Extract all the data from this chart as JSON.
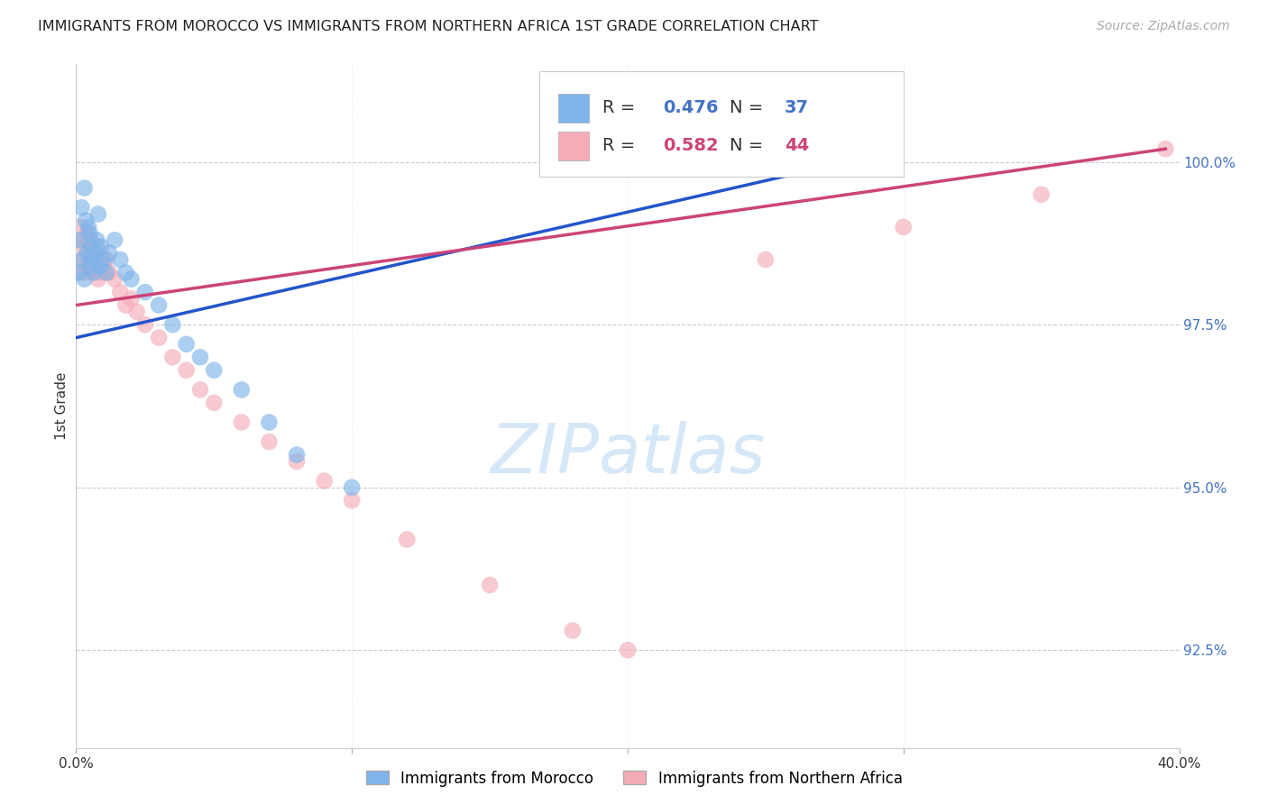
{
  "title": "IMMIGRANTS FROM MOROCCO VS IMMIGRANTS FROM NORTHERN AFRICA 1ST GRADE CORRELATION CHART",
  "source": "Source: ZipAtlas.com",
  "ylabel": "1st Grade",
  "xlim": [
    0.0,
    40.0
  ],
  "ylim": [
    91.0,
    101.5
  ],
  "xticks": [
    0.0,
    10.0,
    20.0,
    30.0,
    40.0
  ],
  "xticklabels": [
    "0.0%",
    "",
    "",
    "",
    "40.0%"
  ],
  "yticks": [
    92.5,
    95.0,
    97.5,
    100.0
  ],
  "yticklabels": [
    "92.5%",
    "95.0%",
    "97.5%",
    "100.0%"
  ],
  "legend_label1": "Immigrants from Morocco",
  "legend_label2": "Immigrants from Northern Africa",
  "R1": 0.476,
  "N1": 37,
  "R2": 0.582,
  "N2": 44,
  "color_blue": "#7EB4EA",
  "color_pink": "#F4ACB7",
  "color_blue_line": "#2255CC",
  "color_pink_line": "#CC4477",
  "color_blue_text": "#4472C4",
  "color_pink_text": "#CC4477",
  "background_color": "#FFFFFF",
  "watermark_color": "#D6E8F7",
  "morocco_x": [
    0.1,
    0.15,
    0.2,
    0.25,
    0.3,
    0.3,
    0.35,
    0.4,
    0.45,
    0.5,
    0.5,
    0.55,
    0.6,
    0.65,
    0.7,
    0.75,
    0.8,
    0.85,
    0.9,
    1.0,
    1.1,
    1.2,
    1.4,
    1.6,
    1.8,
    2.0,
    2.5,
    3.0,
    3.5,
    4.0,
    4.5,
    5.0,
    6.0,
    7.0,
    8.0,
    10.0,
    28.5
  ],
  "morocco_y": [
    98.3,
    98.8,
    99.3,
    98.5,
    99.6,
    98.2,
    99.1,
    98.6,
    99.0,
    98.9,
    98.4,
    98.7,
    98.5,
    98.3,
    98.6,
    98.8,
    99.2,
    98.4,
    98.7,
    98.5,
    98.3,
    98.6,
    98.8,
    98.5,
    98.3,
    98.2,
    98.0,
    97.8,
    97.5,
    97.2,
    97.0,
    96.8,
    96.5,
    96.0,
    95.5,
    95.0,
    100.0
  ],
  "n_africa_x": [
    0.1,
    0.15,
    0.2,
    0.25,
    0.3,
    0.35,
    0.4,
    0.45,
    0.5,
    0.55,
    0.6,
    0.65,
    0.7,
    0.75,
    0.8,
    0.85,
    0.9,
    1.0,
    1.1,
    1.2,
    1.4,
    1.6,
    1.8,
    2.0,
    2.2,
    2.5,
    3.0,
    3.5,
    4.0,
    4.5,
    5.0,
    6.0,
    7.0,
    8.0,
    9.0,
    10.0,
    12.0,
    15.0,
    18.0,
    20.0,
    25.0,
    30.0,
    35.0,
    39.5
  ],
  "n_africa_y": [
    98.5,
    99.0,
    98.8,
    98.3,
    98.7,
    98.4,
    98.9,
    98.6,
    98.8,
    98.5,
    98.3,
    98.6,
    98.4,
    98.7,
    98.2,
    98.5,
    98.3,
    98.4,
    98.5,
    98.3,
    98.2,
    98.0,
    97.8,
    97.9,
    97.7,
    97.5,
    97.3,
    97.0,
    96.8,
    96.5,
    96.3,
    96.0,
    95.7,
    95.4,
    95.1,
    94.8,
    94.2,
    93.5,
    92.8,
    92.5,
    98.5,
    99.0,
    99.5,
    100.2
  ],
  "trendline_blue_x0": 0.0,
  "trendline_blue_y0": 97.3,
  "trendline_blue_x1": 28.5,
  "trendline_blue_y1": 100.05,
  "trendline_pink_x0": 0.0,
  "trendline_pink_y0": 97.8,
  "trendline_pink_x1": 39.5,
  "trendline_pink_y1": 100.2
}
